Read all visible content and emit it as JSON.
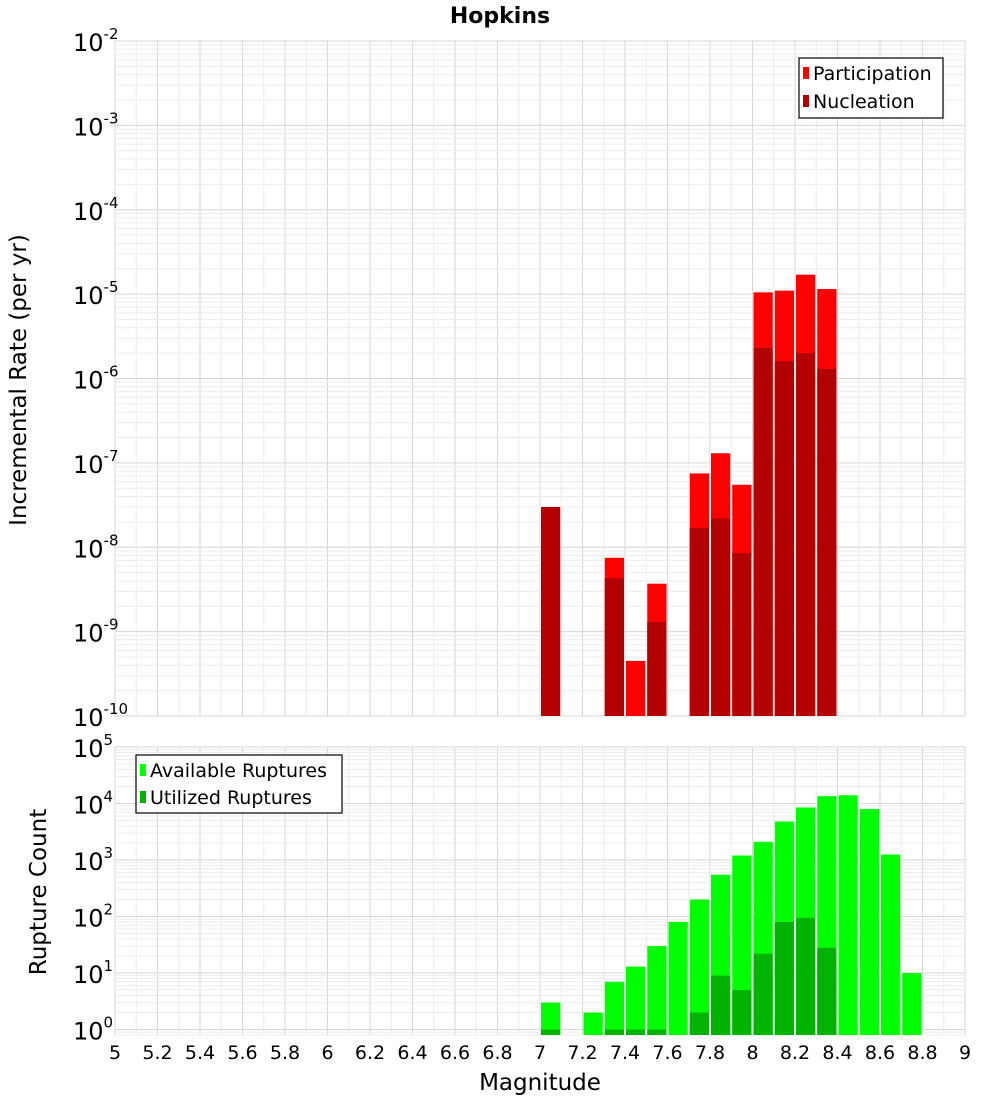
{
  "chart_data": [
    {
      "type": "bar",
      "title": "Hopkins",
      "xlabel": "",
      "ylabel": "Incremental Rate (per yr)",
      "yscale": "log",
      "ylim": [
        1e-10,
        0.01
      ],
      "xlim": [
        5,
        9
      ],
      "grid": true,
      "legend_position": "top-right",
      "series": [
        {
          "name": "Participation",
          "color": "#ff0000",
          "x": [
            7.35,
            7.45,
            7.55,
            7.75,
            7.85,
            7.95,
            8.05,
            8.15,
            8.25,
            8.35
          ],
          "values": [
            7.5e-09,
            4.5e-10,
            3.7e-09,
            7.5e-08,
            1.3e-07,
            5.5e-08,
            1.05e-05,
            1.1e-05,
            1.7e-05,
            1.15e-05
          ]
        },
        {
          "name": "Nucleation",
          "color": "#b30000",
          "x": [
            7.05,
            7.35,
            7.45,
            7.55,
            7.75,
            7.85,
            7.95,
            8.05,
            8.15,
            8.25,
            8.35
          ],
          "values": [
            3e-08,
            4.3e-09,
            1e-10,
            1.3e-09,
            1.7e-08,
            2.2e-08,
            8.5e-09,
            2.3e-06,
            1.6e-06,
            2e-06,
            1.3e-06
          ]
        }
      ]
    },
    {
      "type": "bar",
      "title": "",
      "xlabel": "Magnitude",
      "ylabel": "Rupture Count",
      "yscale": "log",
      "ylim": [
        0.8,
        100000.0
      ],
      "xlim": [
        5,
        9
      ],
      "grid": true,
      "legend_position": "top-left",
      "series": [
        {
          "name": "Available Ruptures",
          "color": "#00ff00",
          "x": [
            7.05,
            7.25,
            7.35,
            7.45,
            7.55,
            7.65,
            7.75,
            7.85,
            7.95,
            8.05,
            8.15,
            8.25,
            8.35,
            8.45,
            8.55,
            8.65,
            8.75
          ],
          "values": [
            3,
            2,
            7,
            13,
            30,
            80,
            200,
            550,
            1200,
            2100,
            4800,
            8500,
            13500,
            14000,
            8000,
            1250,
            10
          ]
        },
        {
          "name": "Utilized Ruptures",
          "color": "#00b300",
          "x": [
            7.05,
            7.35,
            7.45,
            7.55,
            7.75,
            7.85,
            7.95,
            8.05,
            8.15,
            8.25,
            8.35
          ],
          "values": [
            1,
            1,
            1,
            1,
            2,
            9,
            5,
            22,
            80,
            95,
            28
          ]
        }
      ]
    }
  ],
  "x_ticks": [
    "5",
    "5.2",
    "5.4",
    "5.6",
    "5.8",
    "6",
    "6.2",
    "6.4",
    "6.6",
    "6.8",
    "7",
    "7.2",
    "7.4",
    "7.6",
    "7.8",
    "8",
    "8.2",
    "8.4",
    "8.6",
    "8.8",
    "9"
  ],
  "bin_width": 0.1,
  "top_y_ticks": [
    {
      "base": "10",
      "exp": "-2",
      "value": 0.01
    },
    {
      "base": "10",
      "exp": "-3",
      "value": 0.001
    },
    {
      "base": "10",
      "exp": "-4",
      "value": 0.0001
    },
    {
      "base": "10",
      "exp": "-5",
      "value": 1e-05
    },
    {
      "base": "10",
      "exp": "-6",
      "value": 1e-06
    },
    {
      "base": "10",
      "exp": "-7",
      "value": 1e-07
    },
    {
      "base": "10",
      "exp": "-8",
      "value": 1e-08
    },
    {
      "base": "10",
      "exp": "-9",
      "value": 1e-09
    },
    {
      "base": "10",
      "exp": "-10",
      "value": 1e-10
    }
  ],
  "bottom_y_ticks": [
    {
      "base": "10",
      "exp": "5",
      "value": 100000.0
    },
    {
      "base": "10",
      "exp": "4",
      "value": 10000.0
    },
    {
      "base": "10",
      "exp": "3",
      "value": 1000.0
    },
    {
      "base": "10",
      "exp": "2",
      "value": 100.0
    },
    {
      "base": "10",
      "exp": "1",
      "value": 10.0
    },
    {
      "base": "10",
      "exp": "0",
      "value": 1
    }
  ]
}
